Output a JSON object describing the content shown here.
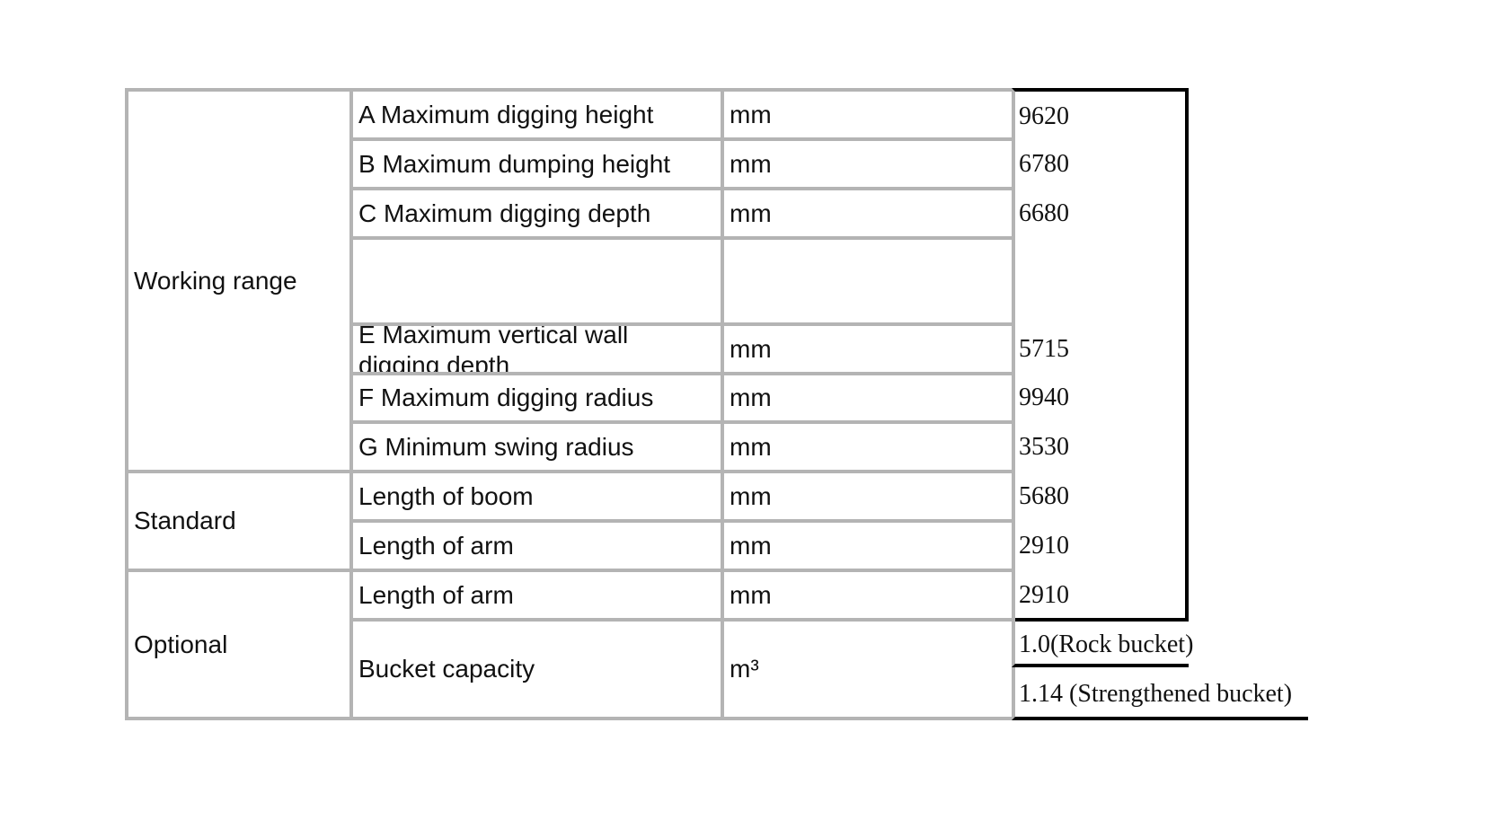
{
  "groups": [
    {
      "label": "Working range"
    },
    {
      "label": "Standard"
    },
    {
      "label": "Optional"
    }
  ],
  "rows": [
    {
      "item": "A Maximum digging height",
      "unit": "mm",
      "value": "9620"
    },
    {
      "item": "B Maximum dumping height",
      "unit": "mm",
      "value": "6780"
    },
    {
      "item": "C Maximum digging depth",
      "unit": "mm",
      "value": "6680"
    },
    {
      "item": "",
      "unit": "",
      "value": ""
    },
    {
      "item": "E Maximum vertical wall digging depth",
      "unit": "mm",
      "value": "5715"
    },
    {
      "item": "F Maximum digging radius",
      "unit": "mm",
      "value": "9940"
    },
    {
      "item": "G Minimum swing radius",
      "unit": "mm",
      "value": "3530"
    },
    {
      "item": "Length of boom",
      "unit": "mm",
      "value": "5680"
    },
    {
      "item": "Length of arm",
      "unit": "mm",
      "value": "2910"
    },
    {
      "item": "Length of arm",
      "unit": "mm",
      "value": "2910"
    },
    {
      "item": "Bucket capacity",
      "unit": "m³",
      "values": [
        "1.0(Rock bucket)",
        "1.14 (Strengthened bucket)"
      ]
    }
  ]
}
